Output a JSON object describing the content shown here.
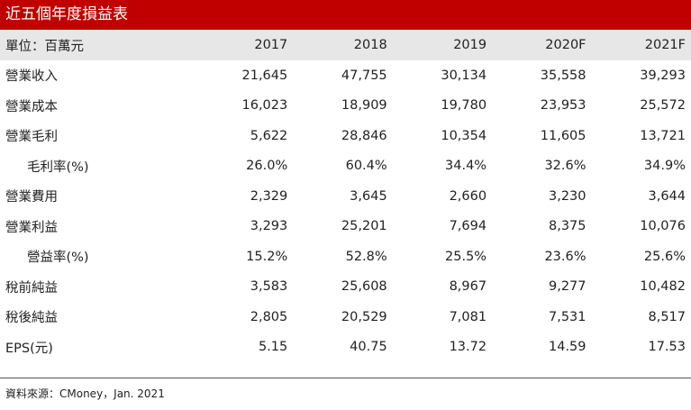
{
  "title": "近五個年度損益表",
  "table": {
    "header_label": "單位：百萬元",
    "years": [
      "2017",
      "2018",
      "2019",
      "2020F",
      "2021F"
    ],
    "rows": [
      {
        "label": "營業收入",
        "indent": false,
        "values": [
          "21,645",
          "47,755",
          "30,134",
          "35,558",
          "39,293"
        ]
      },
      {
        "label": "營業成本",
        "indent": false,
        "values": [
          "16,023",
          "18,909",
          "19,780",
          "23,953",
          "25,572"
        ]
      },
      {
        "label": "營業毛利",
        "indent": false,
        "values": [
          "5,622",
          "28,846",
          "10,354",
          "11,605",
          "13,721"
        ]
      },
      {
        "label": "毛利率(%)",
        "indent": true,
        "values": [
          "26.0%",
          "60.4%",
          "34.4%",
          "32.6%",
          "34.9%"
        ]
      },
      {
        "label": "營業費用",
        "indent": false,
        "values": [
          "2,329",
          "3,645",
          "2,660",
          "3,230",
          "3,644"
        ]
      },
      {
        "label": "營業利益",
        "indent": false,
        "values": [
          "3,293",
          "25,201",
          "7,694",
          "8,375",
          "10,076"
        ]
      },
      {
        "label": "營益率(%)",
        "indent": true,
        "values": [
          "15.2%",
          "52.8%",
          "25.5%",
          "23.6%",
          "25.6%"
        ]
      },
      {
        "label": "稅前純益",
        "indent": false,
        "values": [
          "3,583",
          "25,608",
          "8,967",
          "9,277",
          "10,482"
        ]
      },
      {
        "label": "稅後純益",
        "indent": false,
        "values": [
          "2,805",
          "20,529",
          "7,081",
          "7,531",
          "8,517"
        ]
      },
      {
        "label": "EPS(元)",
        "indent": false,
        "values": [
          "5.15",
          "40.75",
          "13.72",
          "14.59",
          "17.53"
        ]
      }
    ]
  },
  "source": "資料來源：CMoney，Jan. 2021",
  "colors": {
    "title_bg": "#c00000",
    "header_bg": "#e7e7e7"
  }
}
